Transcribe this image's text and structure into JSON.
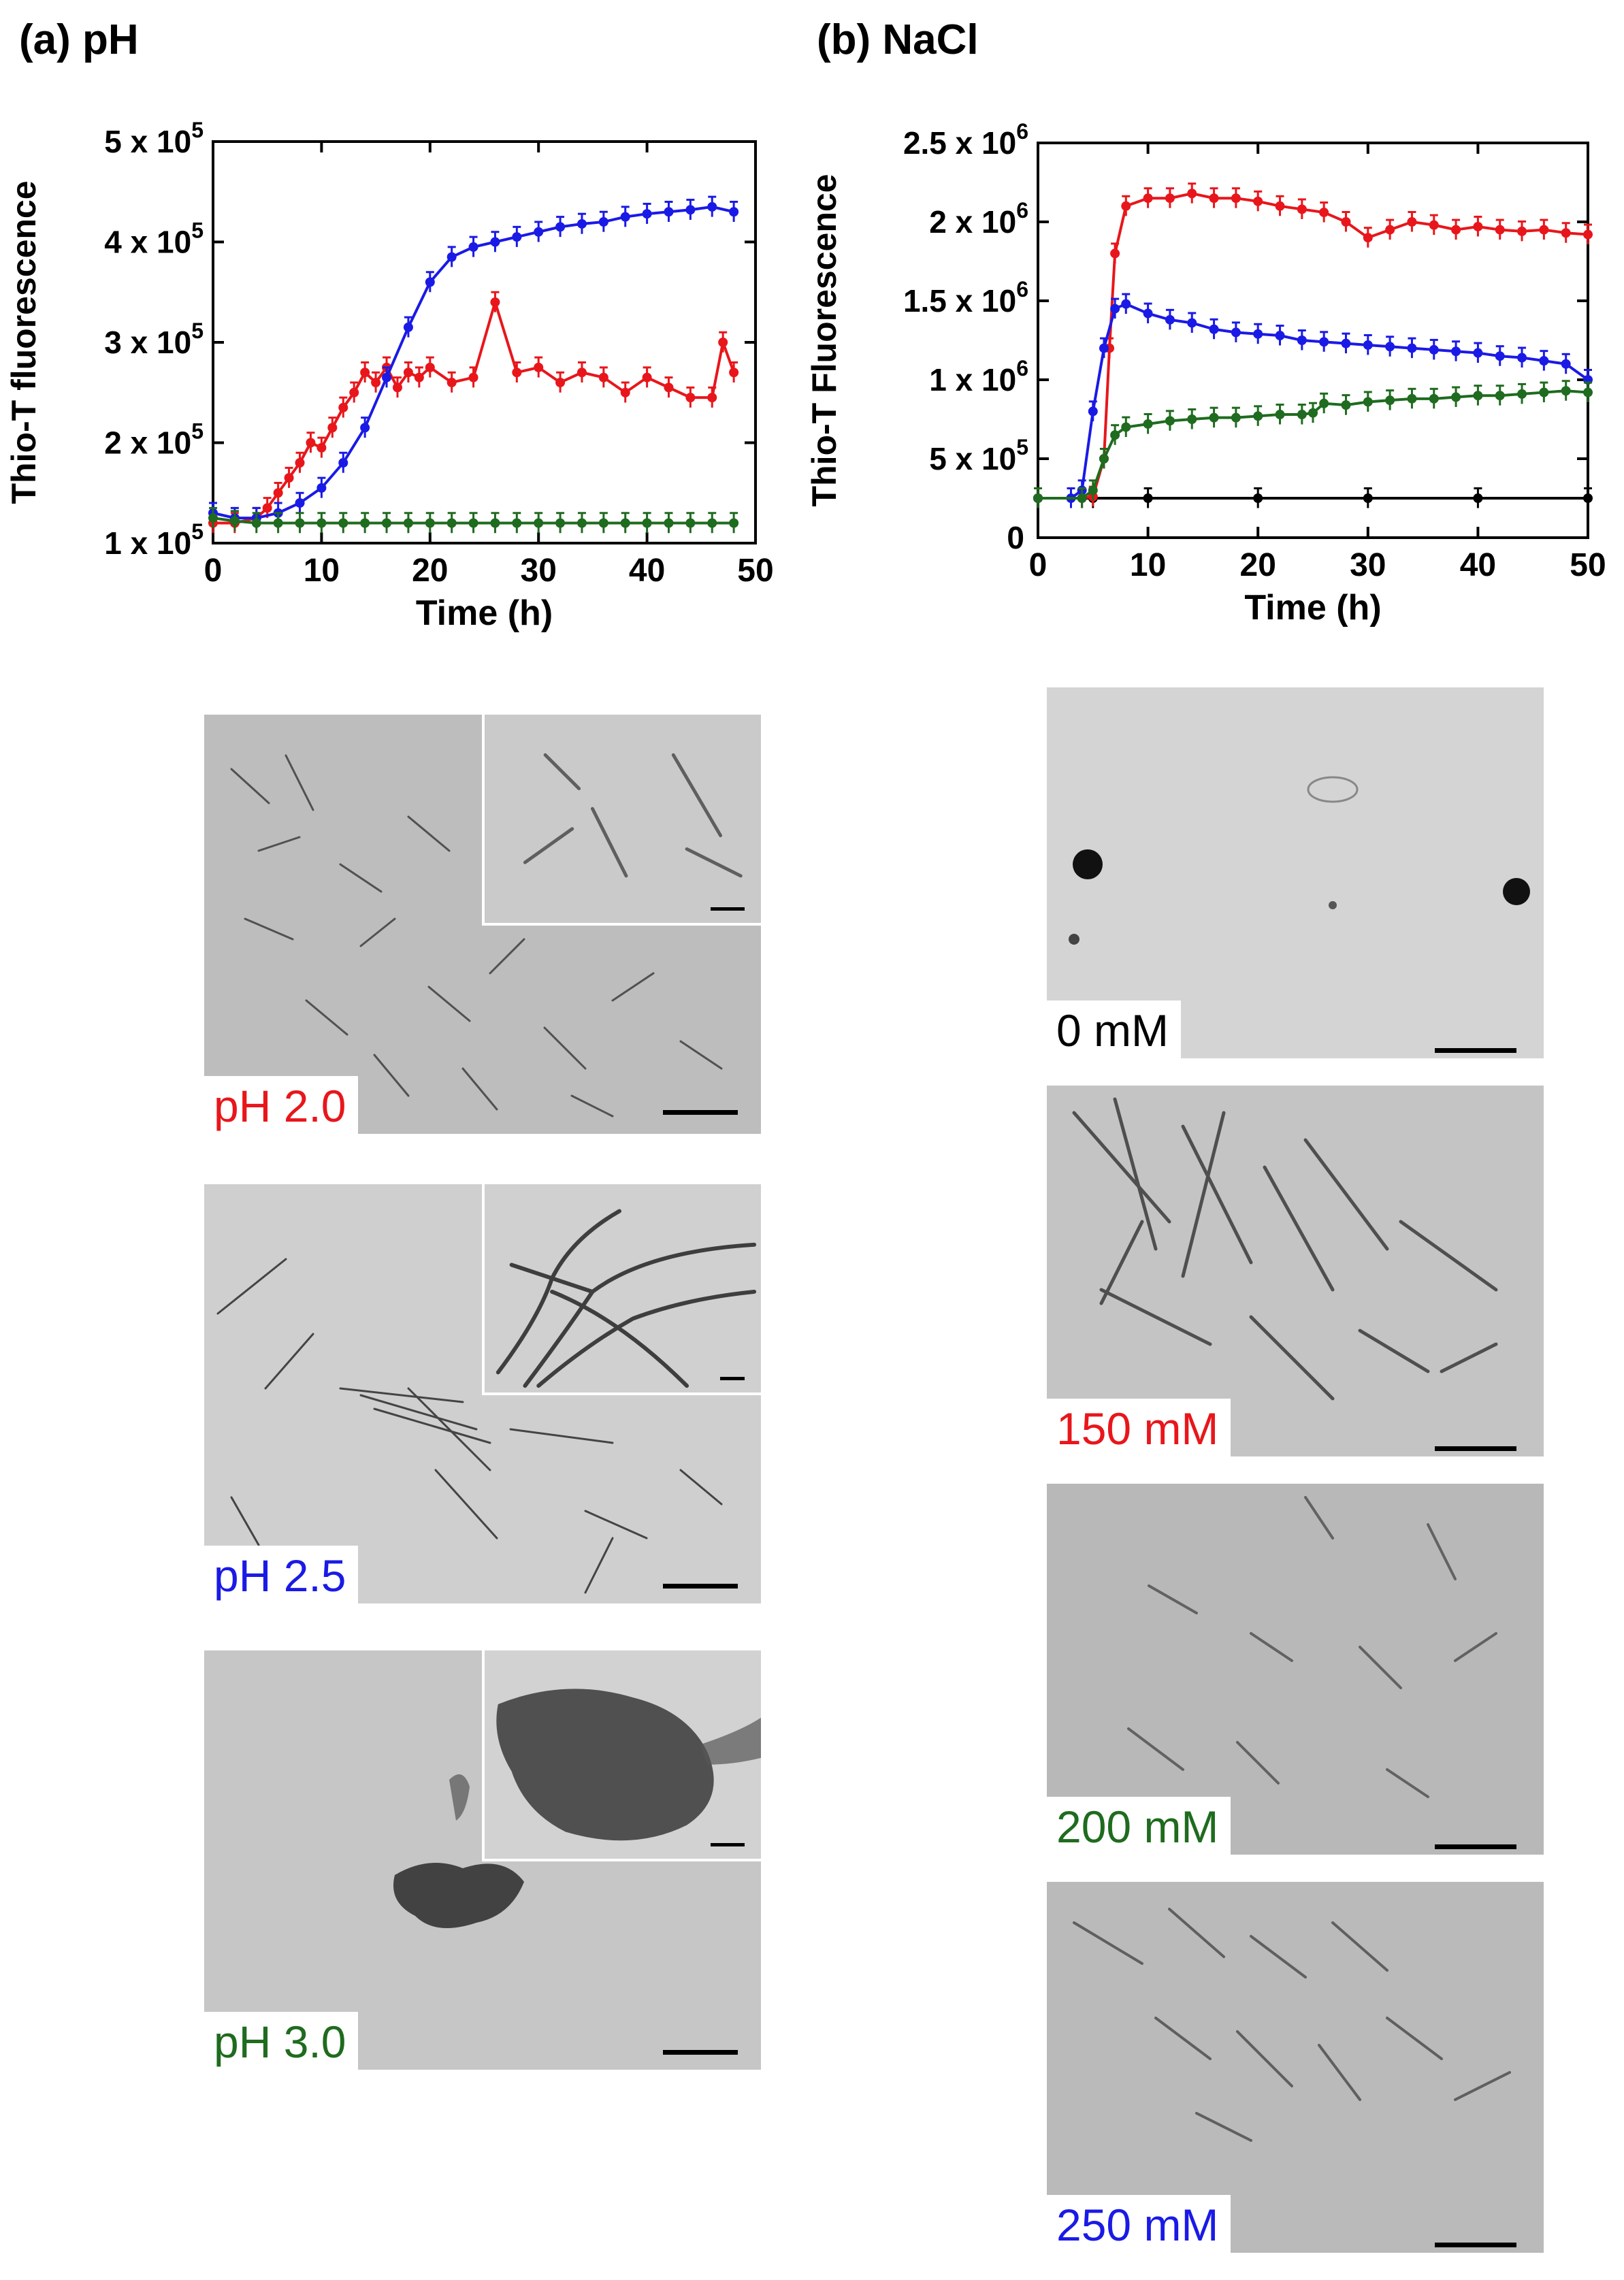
{
  "panels": {
    "a": {
      "title": "(a) pH"
    },
    "b": {
      "title": "(b) NaCl"
    }
  },
  "chart_data": [
    {
      "type": "line",
      "xlabel": "Time  (h)",
      "ylabel": "Thio-T fluorescence",
      "xlim": [
        0,
        50
      ],
      "ylim": [
        100000,
        500000
      ],
      "xticks": [
        "0",
        "10",
        "20",
        "30",
        "40",
        "50"
      ],
      "yticks": [
        {
          "value": 100000,
          "mant": "1 x 10",
          "exp": "5"
        },
        {
          "value": 200000,
          "mant": "2 x 10",
          "exp": "5"
        },
        {
          "value": 300000,
          "mant": "3 x 10",
          "exp": "5"
        },
        {
          "value": 400000,
          "mant": "4 x 10",
          "exp": "5"
        },
        {
          "value": 500000,
          "mant": "5 x 10",
          "exp": "5"
        }
      ],
      "series": [
        {
          "color": "#e8161b",
          "x": [
            0,
            2,
            4,
            5,
            6,
            7,
            8,
            9,
            10,
            11,
            12,
            13,
            14,
            15,
            16,
            17,
            18,
            19,
            20,
            22,
            24,
            26,
            28,
            30,
            32,
            34,
            36,
            38,
            40,
            42,
            44,
            46,
            47,
            48
          ],
          "y": [
            120000,
            120000,
            125000,
            135000,
            150000,
            165000,
            180000,
            200000,
            195000,
            215000,
            235000,
            250000,
            270000,
            260000,
            275000,
            255000,
            270000,
            265000,
            275000,
            260000,
            265000,
            340000,
            270000,
            275000,
            260000,
            270000,
            265000,
            250000,
            265000,
            255000,
            245000,
            245000,
            300000,
            270000
          ]
        },
        {
          "color": "#1a1ae6",
          "x": [
            0,
            2,
            4,
            6,
            8,
            10,
            12,
            14,
            16,
            18,
            20,
            22,
            24,
            26,
            28,
            30,
            32,
            34,
            36,
            38,
            40,
            42,
            44,
            46,
            48
          ],
          "y": [
            130000,
            125000,
            125000,
            130000,
            140000,
            155000,
            180000,
            215000,
            265000,
            315000,
            360000,
            385000,
            395000,
            400000,
            405000,
            410000,
            415000,
            418000,
            420000,
            425000,
            428000,
            430000,
            432000,
            435000,
            430000
          ]
        },
        {
          "color": "#1f6b1f",
          "x": [
            0,
            2,
            4,
            6,
            8,
            10,
            12,
            14,
            16,
            18,
            20,
            22,
            24,
            26,
            28,
            30,
            32,
            34,
            36,
            38,
            40,
            42,
            44,
            46,
            48
          ],
          "y": [
            125000,
            122000,
            120000,
            120000,
            120000,
            120000,
            120000,
            120000,
            120000,
            120000,
            120000,
            120000,
            120000,
            120000,
            120000,
            120000,
            120000,
            120000,
            120000,
            120000,
            120000,
            120000,
            120000,
            120000,
            120000
          ]
        }
      ]
    },
    {
      "type": "line",
      "xlabel": "Time (h)",
      "ylabel": "Thio-T Fluorescence",
      "xlim": [
        0,
        50
      ],
      "ylim": [
        0,
        2500000
      ],
      "xticks": [
        "0",
        "10",
        "20",
        "30",
        "40",
        "50"
      ],
      "yticks": [
        {
          "value": 0,
          "mant": "0",
          "exp": ""
        },
        {
          "value": 500000,
          "mant": "5 x 10",
          "exp": "5"
        },
        {
          "value": 1000000,
          "mant": "1 x 10",
          "exp": "6"
        },
        {
          "value": 1500000,
          "mant": "1.5 x 10",
          "exp": "6"
        },
        {
          "value": 2000000,
          "mant": "2 x 10",
          "exp": "6"
        },
        {
          "value": 2500000,
          "mant": "2.5 x 10",
          "exp": "6"
        }
      ],
      "series": [
        {
          "color": "#000000",
          "x": [
            0,
            5,
            10,
            20,
            30,
            40,
            50
          ],
          "y": [
            250000,
            250000,
            250000,
            250000,
            250000,
            250000,
            250000
          ]
        },
        {
          "color": "#e8161b",
          "x": [
            0,
            4,
            5,
            6,
            6.5,
            7,
            8,
            10,
            12,
            14,
            16,
            18,
            20,
            22,
            24,
            26,
            28,
            30,
            32,
            34,
            36,
            38,
            40,
            42,
            44,
            46,
            48,
            50
          ],
          "y": [
            250000,
            250000,
            260000,
            500000,
            1200000,
            1800000,
            2100000,
            2150000,
            2150000,
            2180000,
            2150000,
            2150000,
            2130000,
            2100000,
            2080000,
            2060000,
            2000000,
            1900000,
            1950000,
            2000000,
            1980000,
            1950000,
            1970000,
            1950000,
            1940000,
            1950000,
            1930000,
            1920000
          ]
        },
        {
          "color": "#1a1ae6",
          "x": [
            0,
            3,
            4,
            5,
            6,
            7,
            8,
            10,
            12,
            14,
            16,
            18,
            20,
            22,
            24,
            26,
            28,
            30,
            32,
            34,
            36,
            38,
            40,
            42,
            44,
            46,
            48,
            50
          ],
          "y": [
            250000,
            250000,
            300000,
            800000,
            1200000,
            1450000,
            1480000,
            1420000,
            1380000,
            1360000,
            1320000,
            1300000,
            1290000,
            1280000,
            1250000,
            1240000,
            1230000,
            1220000,
            1210000,
            1200000,
            1190000,
            1180000,
            1170000,
            1150000,
            1140000,
            1120000,
            1100000,
            1000000
          ]
        },
        {
          "color": "#1f6b1f",
          "x": [
            0,
            4,
            5,
            6,
            7,
            8,
            10,
            12,
            14,
            16,
            18,
            20,
            22,
            24,
            25,
            26,
            28,
            30,
            32,
            34,
            36,
            38,
            40,
            42,
            44,
            46,
            48,
            50
          ],
          "y": [
            250000,
            250000,
            300000,
            500000,
            650000,
            700000,
            720000,
            740000,
            750000,
            760000,
            760000,
            770000,
            780000,
            780000,
            790000,
            850000,
            840000,
            860000,
            870000,
            880000,
            880000,
            890000,
            900000,
            900000,
            910000,
            920000,
            930000,
            920000
          ]
        }
      ]
    }
  ],
  "images_a": [
    {
      "label": "pH 2.0",
      "label_color": "#e8161b",
      "inset": true
    },
    {
      "label": "pH 2.5",
      "label_color": "#1a1ae6",
      "inset": true
    },
    {
      "label": "pH 3.0",
      "label_color": "#1f6b1f",
      "inset": true
    }
  ],
  "images_b": [
    {
      "label": "0 mM",
      "label_color": "#000000",
      "inset": false
    },
    {
      "label": "150 mM",
      "label_color": "#e8161b",
      "inset": false
    },
    {
      "label": "200 mM",
      "label_color": "#1f6b1f",
      "inset": false
    },
    {
      "label": "250 mM",
      "label_color": "#1a1ae6",
      "inset": false
    }
  ]
}
